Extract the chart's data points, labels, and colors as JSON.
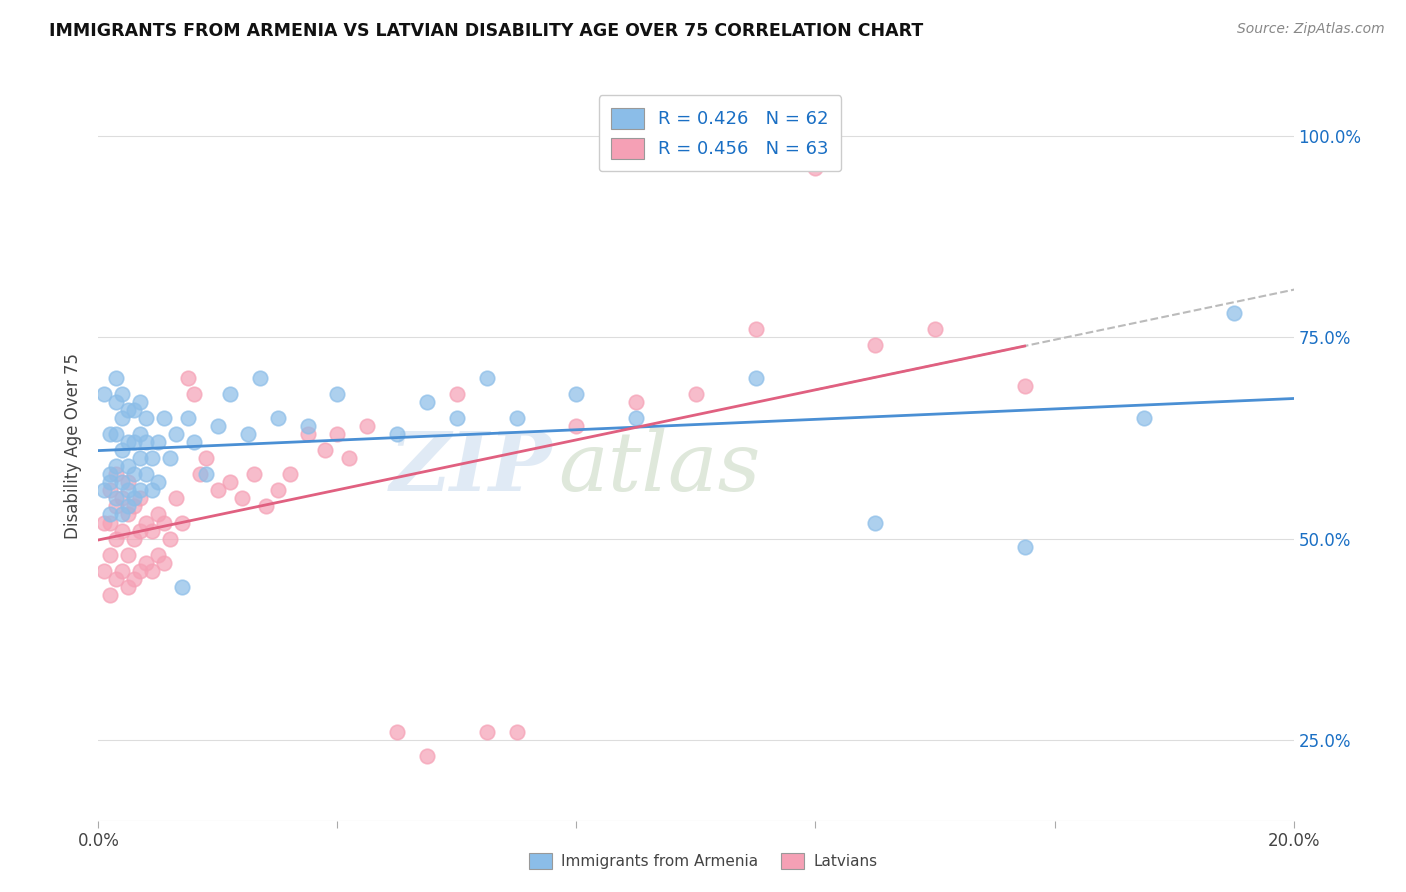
{
  "title": "IMMIGRANTS FROM ARMENIA VS LATVIAN DISABILITY AGE OVER 75 CORRELATION CHART",
  "source": "Source: ZipAtlas.com",
  "ylabel": "Disability Age Over 75",
  "x_min": 0.0,
  "x_max": 0.2,
  "y_min": 0.15,
  "y_max": 1.08,
  "y_ticks": [
    0.25,
    0.5,
    0.75,
    1.0
  ],
  "y_tick_labels": [
    "25.0%",
    "50.0%",
    "75.0%",
    "100.0%"
  ],
  "series1_name": "Immigrants from Armenia",
  "series1_color": "#8bbde8",
  "series1_R": 0.426,
  "series1_N": 62,
  "series2_name": "Latvians",
  "series2_color": "#f5a0b5",
  "series2_R": 0.456,
  "series2_N": 63,
  "legend_color": "#1a6fc4",
  "legend_N_color": "#e03050",
  "blue_line_color": "#4a8fd4",
  "pink_line_color": "#e06080",
  "dash_line_color": "#bbbbbb",
  "series1_x": [
    0.001,
    0.001,
    0.002,
    0.002,
    0.002,
    0.002,
    0.003,
    0.003,
    0.003,
    0.003,
    0.003,
    0.004,
    0.004,
    0.004,
    0.004,
    0.004,
    0.005,
    0.005,
    0.005,
    0.005,
    0.005,
    0.006,
    0.006,
    0.006,
    0.006,
    0.007,
    0.007,
    0.007,
    0.007,
    0.008,
    0.008,
    0.008,
    0.009,
    0.009,
    0.01,
    0.01,
    0.011,
    0.012,
    0.013,
    0.014,
    0.015,
    0.016,
    0.018,
    0.02,
    0.022,
    0.025,
    0.027,
    0.03,
    0.035,
    0.04,
    0.05,
    0.055,
    0.06,
    0.065,
    0.07,
    0.08,
    0.09,
    0.11,
    0.13,
    0.155,
    0.175,
    0.19
  ],
  "series1_y": [
    0.56,
    0.68,
    0.53,
    0.58,
    0.63,
    0.57,
    0.55,
    0.59,
    0.63,
    0.67,
    0.7,
    0.53,
    0.57,
    0.61,
    0.65,
    0.68,
    0.54,
    0.56,
    0.59,
    0.62,
    0.66,
    0.55,
    0.58,
    0.62,
    0.66,
    0.56,
    0.6,
    0.63,
    0.67,
    0.58,
    0.62,
    0.65,
    0.56,
    0.6,
    0.57,
    0.62,
    0.65,
    0.6,
    0.63,
    0.44,
    0.65,
    0.62,
    0.58,
    0.64,
    0.68,
    0.63,
    0.7,
    0.65,
    0.64,
    0.68,
    0.63,
    0.67,
    0.65,
    0.7,
    0.65,
    0.68,
    0.65,
    0.7,
    0.52,
    0.49,
    0.65,
    0.78
  ],
  "series2_x": [
    0.001,
    0.001,
    0.002,
    0.002,
    0.002,
    0.002,
    0.003,
    0.003,
    0.003,
    0.003,
    0.004,
    0.004,
    0.004,
    0.005,
    0.005,
    0.005,
    0.005,
    0.006,
    0.006,
    0.006,
    0.007,
    0.007,
    0.007,
    0.008,
    0.008,
    0.009,
    0.009,
    0.01,
    0.01,
    0.011,
    0.011,
    0.012,
    0.013,
    0.014,
    0.015,
    0.016,
    0.017,
    0.018,
    0.02,
    0.022,
    0.024,
    0.026,
    0.028,
    0.03,
    0.032,
    0.035,
    0.038,
    0.04,
    0.042,
    0.045,
    0.05,
    0.055,
    0.06,
    0.065,
    0.07,
    0.08,
    0.09,
    0.1,
    0.11,
    0.12,
    0.13,
    0.14,
    0.155
  ],
  "series2_y": [
    0.46,
    0.52,
    0.43,
    0.48,
    0.52,
    0.56,
    0.45,
    0.5,
    0.54,
    0.58,
    0.46,
    0.51,
    0.55,
    0.44,
    0.48,
    0.53,
    0.57,
    0.45,
    0.5,
    0.54,
    0.46,
    0.51,
    0.55,
    0.47,
    0.52,
    0.46,
    0.51,
    0.48,
    0.53,
    0.47,
    0.52,
    0.5,
    0.55,
    0.52,
    0.7,
    0.68,
    0.58,
    0.6,
    0.56,
    0.57,
    0.55,
    0.58,
    0.54,
    0.56,
    0.58,
    0.63,
    0.61,
    0.63,
    0.6,
    0.64,
    0.26,
    0.23,
    0.68,
    0.26,
    0.26,
    0.64,
    0.67,
    0.68,
    0.76,
    0.96,
    0.74,
    0.76,
    0.69
  ]
}
